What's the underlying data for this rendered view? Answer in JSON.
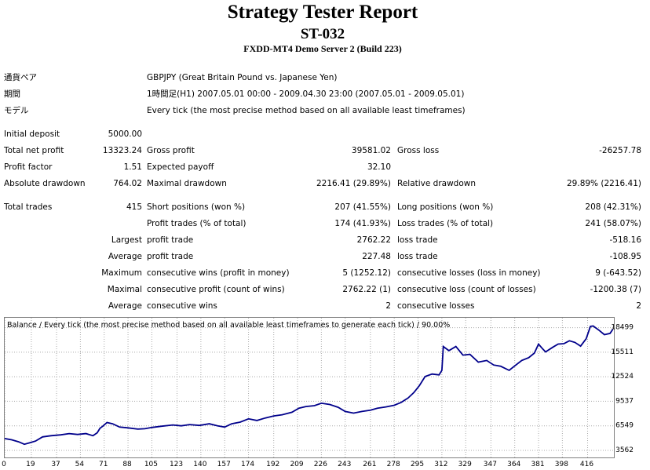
{
  "header": {
    "title": "Strategy Tester Report",
    "subtitle": "ST-032",
    "server": "FXDD-MT4 Demo Server 2 (Build 223)"
  },
  "info": [
    {
      "label": "通貨ペア",
      "value": "GBPJPY (Great Britain Pound vs. Japanese Yen)"
    },
    {
      "label": "期間",
      "value": "1時間足(H1) 2007.05.01 00:00 - 2009.04.30 23:00 (2007.05.01 - 2009.05.01)"
    },
    {
      "label": "モデル",
      "value": "Every tick (the most precise method based on all available least timeframes)"
    }
  ],
  "stats": {
    "initial_deposit": {
      "label": "Initial deposit",
      "value": "5000.00"
    },
    "rows": [
      {
        "c1": "Total net profit",
        "v1": "13323.24",
        "c2": "Gross profit",
        "v2": "39581.02",
        "c3": "Gross loss",
        "v3": "-26257.78"
      },
      {
        "c1": "Profit factor",
        "v1": "1.51",
        "c2": "Expected payoff",
        "v2": "32.10",
        "c3": "",
        "v3": ""
      },
      {
        "c1": "Absolute drawdown",
        "v1": "764.02",
        "c2": "Maximal drawdown",
        "v2": "2216.41 (29.89%)",
        "c3": "Relative drawdown",
        "v3": "29.89% (2216.41)"
      }
    ],
    "total_trades": {
      "label": "Total trades",
      "value": "415"
    },
    "trade_rows": [
      {
        "pre": "",
        "c2": "Short positions (won %)",
        "v2": "207 (41.55%)",
        "c3": "Long positions (won %)",
        "v3": "208 (42.31%)"
      },
      {
        "pre": "",
        "c2": "Profit trades (% of total)",
        "v2": "174 (41.93%)",
        "c3": "Loss trades (% of total)",
        "v3": "241 (58.07%)"
      },
      {
        "pre": "Largest",
        "c2": "profit trade",
        "v2": "2762.22",
        "c3": "loss trade",
        "v3": "-518.16"
      },
      {
        "pre": "Average",
        "c2": "profit trade",
        "v2": "227.48",
        "c3": "loss trade",
        "v3": "-108.95"
      },
      {
        "pre": "Maximum",
        "c2": "consecutive wins (profit in money)",
        "v2": "5 (1252.12)",
        "c3": "consecutive losses (loss in money)",
        "v3": "9 (-643.52)"
      },
      {
        "pre": "Maximal",
        "c2": "consecutive profit (count of wins)",
        "v2": "2762.22 (1)",
        "c3": "consecutive loss (count of losses)",
        "v3": "-1200.38 (7)"
      },
      {
        "pre": "Average",
        "c2": "consecutive wins",
        "v2": "2",
        "c3": "consecutive losses",
        "v3": "2"
      }
    ]
  },
  "colors": {
    "line": "#00008b",
    "grid": "#a9a9a9",
    "frame": "#7f7f7f"
  },
  "chart_data": {
    "type": "line",
    "title": "Balance / Every tick (the most precise method based on all available least timeframes to generate each tick) / 90.00%",
    "x_ticks": [
      0,
      19,
      37,
      54,
      71,
      88,
      105,
      123,
      140,
      157,
      174,
      192,
      209,
      226,
      243,
      261,
      278,
      295,
      312,
      329,
      347,
      364,
      381,
      398,
      416
    ],
    "y_ticks": [
      3562,
      6549,
      9537,
      12524,
      15511,
      18499
    ],
    "xlim": [
      0,
      423
    ],
    "ylim": [
      2700,
      19700
    ],
    "grid": true,
    "series": [
      {
        "values": [
          [
            0,
            5000
          ],
          [
            5,
            4850
          ],
          [
            10,
            4600
          ],
          [
            14,
            4300
          ],
          [
            18,
            4500
          ],
          [
            22,
            4700
          ],
          [
            27,
            5200
          ],
          [
            33,
            5350
          ],
          [
            40,
            5450
          ],
          [
            46,
            5600
          ],
          [
            52,
            5500
          ],
          [
            58,
            5600
          ],
          [
            63,
            5350
          ],
          [
            66,
            5700
          ],
          [
            68,
            6250
          ],
          [
            70,
            6500
          ],
          [
            73,
            6950
          ],
          [
            77,
            6800
          ],
          [
            82,
            6400
          ],
          [
            88,
            6300
          ],
          [
            95,
            6150
          ],
          [
            100,
            6200
          ],
          [
            105,
            6350
          ],
          [
            112,
            6500
          ],
          [
            120,
            6650
          ],
          [
            126,
            6550
          ],
          [
            132,
            6700
          ],
          [
            139,
            6600
          ],
          [
            146,
            6800
          ],
          [
            152,
            6550
          ],
          [
            157,
            6400
          ],
          [
            162,
            6800
          ],
          [
            168,
            7000
          ],
          [
            174,
            7400
          ],
          [
            180,
            7200
          ],
          [
            186,
            7500
          ],
          [
            192,
            7750
          ],
          [
            198,
            7900
          ],
          [
            205,
            8200
          ],
          [
            210,
            8700
          ],
          [
            215,
            8900
          ],
          [
            221,
            9000
          ],
          [
            226,
            9300
          ],
          [
            232,
            9150
          ],
          [
            238,
            8800
          ],
          [
            243,
            8300
          ],
          [
            249,
            8100
          ],
          [
            255,
            8300
          ],
          [
            261,
            8450
          ],
          [
            266,
            8700
          ],
          [
            272,
            8850
          ],
          [
            278,
            9050
          ],
          [
            283,
            9400
          ],
          [
            288,
            9950
          ],
          [
            292,
            10600
          ],
          [
            296,
            11450
          ],
          [
            300,
            12550
          ],
          [
            305,
            12850
          ],
          [
            310,
            12750
          ],
          [
            312,
            13300
          ],
          [
            313,
            16200
          ],
          [
            317,
            15700
          ],
          [
            322,
            16200
          ],
          [
            327,
            15150
          ],
          [
            332,
            15250
          ],
          [
            338,
            14300
          ],
          [
            344,
            14500
          ],
          [
            349,
            13950
          ],
          [
            354,
            13800
          ],
          [
            360,
            13300
          ],
          [
            364,
            13850
          ],
          [
            369,
            14500
          ],
          [
            374,
            14850
          ],
          [
            378,
            15400
          ],
          [
            381,
            16500
          ],
          [
            384,
            15900
          ],
          [
            386,
            15550
          ],
          [
            391,
            16100
          ],
          [
            395,
            16500
          ],
          [
            399,
            16550
          ],
          [
            403,
            16900
          ],
          [
            407,
            16700
          ],
          [
            411,
            16250
          ],
          [
            415,
            17150
          ],
          [
            418,
            18650
          ],
          [
            420,
            18700
          ],
          [
            424,
            18200
          ],
          [
            428,
            17650
          ],
          [
            432,
            17800
          ],
          [
            434,
            18300
          ]
        ]
      }
    ]
  }
}
